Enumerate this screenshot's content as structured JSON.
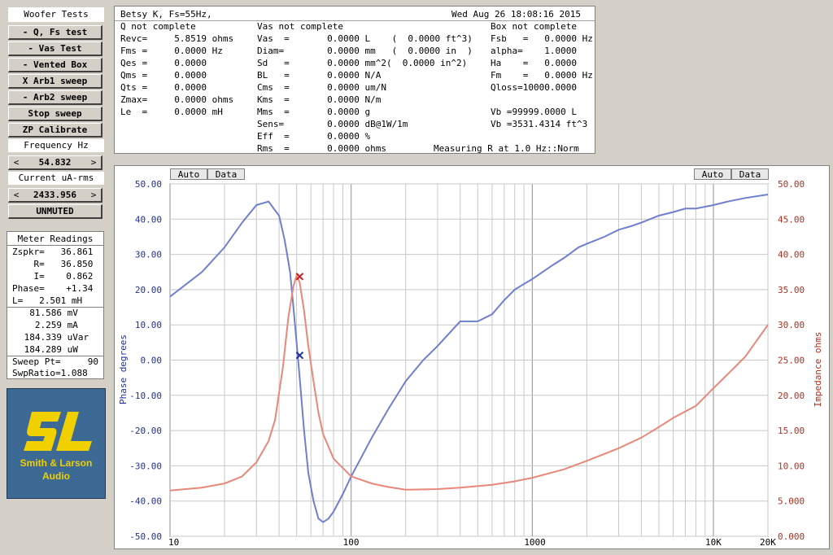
{
  "left_panel": {
    "title": "Woofer Tests",
    "buttons": [
      " - Q, Fs test",
      " - Vas Test",
      " - Vented Box",
      "X Arb1 sweep",
      " - Arb2 sweep",
      "Stop sweep",
      "ZP Calibrate"
    ],
    "frequency_label": "Frequency Hz",
    "frequency_value": "54.832",
    "current_label": "Current uA-rms",
    "current_value": "2433.956",
    "mute_button": "UNMUTED",
    "stepper_left": "<",
    "stepper_right": ">"
  },
  "meter": {
    "title": "Meter Readings",
    "lines": [
      "Zspkr=   36.861",
      "    R=   36.850",
      "    I=    0.862",
      "Phase=    +1.34",
      "L=   2.501 mH"
    ],
    "values": [
      "  81.586 mV",
      "   2.259 mA",
      " 184.339 uVar",
      " 184.289 uW"
    ],
    "sweep": [
      "Sweep Pt=     90",
      "SwpRatio=1.088"
    ]
  },
  "logo": {
    "mark": "SL",
    "line1": "Smith & Larson",
    "line2": "Audio"
  },
  "info": {
    "header_left": "Betsy K, Fs=55Hz,",
    "header_right": "Wed Aug 26 18:08:16 2015",
    "col1": [
      "Q not complete",
      "Revc=     5.8519 ohms",
      "Fms =     0.0000 Hz",
      "Qes =     0.0000",
      "Qms =     0.0000",
      "Qts =     0.0000",
      "Zmax=     0.0000 ohms",
      "Le  =     0.0000 mH"
    ],
    "col2": [
      "Vas not complete",
      "Vas  =       0.0000 L    (  0.0000 ft^3)",
      "Diam=        0.0000 mm   (  0.0000 in  )",
      "Sd   =       0.0000 mm^2(  0.0000 in^2)",
      "BL   =       0.0000 N/A",
      "Cms  =       0.0000 um/N",
      "Kms  =       0.0000 N/m",
      "Mms  =       0.0000 g",
      "Sens=        0.0000 dB@1W/1m",
      "Eff  =       0.0000 %",
      "Rms  =       0.0000 ohms"
    ],
    "col3": [
      "Box not complete",
      "Fsb   =   0.0000 Hz",
      "alpha=    1.0000",
      "Ha    =   0.0000",
      "Fm    =   0.0000 Hz",
      "Qloss=10000.0000",
      "",
      "Vb =99999.0000 L",
      "Vb =3531.4314 ft^3"
    ],
    "status": "Measuring R at 1.0 Hz::Norm"
  },
  "graph": {
    "auto_label": "Auto",
    "data_label": "Data",
    "left_axis_label": "Phase degrees",
    "right_axis_label": "Impedance ohms",
    "left_ticks": [
      "50.00",
      "40.00",
      "30.00",
      "20.00",
      "10.00",
      "0.00",
      "-10.00",
      "-20.00",
      "-30.00",
      "-40.00",
      "-50.00"
    ],
    "right_ticks": [
      "50.00",
      "45.00",
      "40.00",
      "35.00",
      "30.00",
      "25.00",
      "20.00",
      "15.00",
      "10.00",
      "5.000",
      "0.000"
    ],
    "x_ticks": [
      "10",
      "100",
      "1000",
      "10K",
      "20K"
    ],
    "phase_color": "#6f7fd0",
    "impedance_color": "#e8877a",
    "marker_phase_color": "#1a2eb0",
    "marker_impedance_color": "#d01818"
  },
  "chart_data": {
    "type": "line",
    "x_scale": "log",
    "xlim": [
      10,
      20000
    ],
    "ylim_left": [
      -50,
      50
    ],
    "ylim_right": [
      0,
      50
    ],
    "xlabel": "",
    "ylabel_left": "Phase degrees",
    "ylabel_right": "Impedance ohms",
    "grid": true,
    "series": [
      {
        "name": "Phase degrees",
        "axis": "left",
        "x": [
          10,
          15,
          20,
          25,
          30,
          35,
          40,
          43,
          46,
          48,
          50,
          52,
          55,
          58,
          62,
          66,
          70,
          75,
          80,
          90,
          100,
          130,
          160,
          200,
          250,
          300,
          400,
          500,
          600,
          700,
          800,
          1000,
          1300,
          1500,
          1800,
          2000,
          2500,
          3000,
          3500,
          4000,
          5000,
          6000,
          7000,
          8000,
          10000,
          12000,
          15000,
          20000
        ],
        "y": [
          18,
          25,
          32,
          39,
          44,
          45,
          41,
          34,
          25,
          15,
          5,
          -5,
          -20,
          -32,
          -40,
          -45,
          -46,
          -45,
          -43,
          -38,
          -33,
          -22,
          -14,
          -6,
          0,
          4,
          11,
          11,
          13,
          17,
          20,
          23,
          27,
          29,
          32,
          33,
          35,
          37,
          38,
          39,
          41,
          42,
          43,
          43,
          44,
          45,
          46,
          47
        ]
      },
      {
        "name": "Impedance ohms",
        "axis": "right",
        "x": [
          10,
          15,
          20,
          25,
          30,
          35,
          38,
          42,
          45,
          48,
          50,
          52,
          55,
          58,
          62,
          66,
          70,
          80,
          100,
          130,
          160,
          200,
          300,
          400,
          600,
          800,
          1000,
          1500,
          2000,
          3000,
          4000,
          5000,
          6000,
          8000,
          10000,
          12000,
          15000,
          20000
        ],
        "y": [
          6.5,
          6.9,
          7.5,
          8.5,
          10.5,
          13.5,
          16.5,
          24,
          31,
          35.5,
          37,
          36,
          32,
          27,
          22,
          17.5,
          14.5,
          11,
          8.5,
          7.5,
          7,
          6.6,
          6.7,
          6.9,
          7.3,
          7.8,
          8.3,
          9.5,
          10.7,
          12.5,
          14,
          15.5,
          16.8,
          18.5,
          21,
          23,
          25.5,
          30
        ]
      }
    ],
    "markers": [
      {
        "series": "Phase degrees",
        "x": 52,
        "y": 1.34,
        "symbol": "x"
      },
      {
        "series": "Impedance ohms",
        "x": 52,
        "y": 36.86,
        "symbol": "x"
      }
    ]
  }
}
